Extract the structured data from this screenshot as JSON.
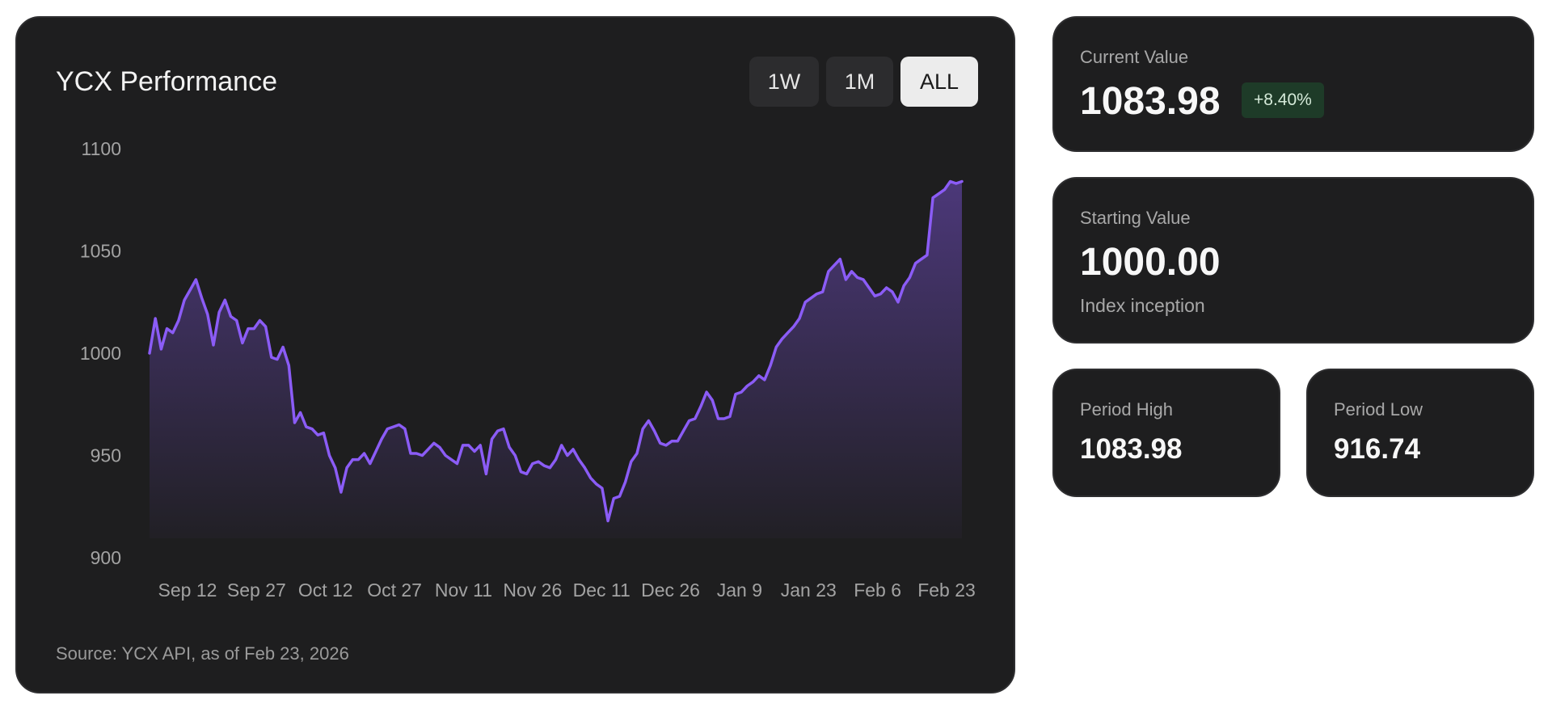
{
  "chart_card": {
    "title": "YCX Performance",
    "range_buttons": [
      "1W",
      "1M",
      "ALL"
    ],
    "active_range": "ALL",
    "source": "Source: YCX API, as of Feb 23, 2026"
  },
  "current": {
    "label": "Current Value",
    "value": "1083.98",
    "change": "+8.40%"
  },
  "starting": {
    "label": "Starting Value",
    "value": "1000.00",
    "note": "Index inception"
  },
  "high": {
    "label": "Period High",
    "value": "1083.98"
  },
  "low": {
    "label": "Period Low",
    "value": "916.74"
  },
  "colors": {
    "line": "#8b5cf6",
    "card_bg": "#1e1e1f",
    "badge_bg": "#1e3b28",
    "badge_text": "#d5ead9"
  },
  "chart_data": {
    "type": "area",
    "title": "YCX Performance",
    "xlabel": "",
    "ylabel": "",
    "ylim": [
      900,
      1100
    ],
    "yticks": [
      "1100",
      "1050",
      "1000",
      "950",
      "900"
    ],
    "xticks": [
      "Sep 12",
      "Sep 27",
      "Oct 12",
      "Oct 27",
      "Nov 11",
      "Nov 26",
      "Dec 11",
      "Dec 26",
      "Jan 9",
      "Jan 23",
      "Feb 6",
      "Feb 23"
    ],
    "x_start": "Sep 1",
    "x_end": "Feb 23",
    "grid": false,
    "legend": "none",
    "values": [
      1000.0,
      1017.0,
      1002.0,
      1012.0,
      1010.0,
      1016.0,
      1026.0,
      1031.0,
      1036.0,
      1027.0,
      1019.0,
      1004.0,
      1020.0,
      1026.0,
      1018.0,
      1016.0,
      1005.0,
      1012.0,
      1012.0,
      1016.0,
      1013.0,
      998.0,
      997.0,
      1003.0,
      994.0,
      966.0,
      971.0,
      964.0,
      963.0,
      960.0,
      961.0,
      950.0,
      944.0,
      932.0,
      944.0,
      948.0,
      948.0,
      951.0,
      946.0,
      952.0,
      958.0,
      963.0,
      964.0,
      965.0,
      963.0,
      951.0,
      951.0,
      950.0,
      953.0,
      956.0,
      954.0,
      950.0,
      948.0,
      946.0,
      955.0,
      955.0,
      952.0,
      955.0,
      941.0,
      958.0,
      962.0,
      963.0,
      954.0,
      950.0,
      942.0,
      941.0,
      946.0,
      947.0,
      945.0,
      944.0,
      948.0,
      955.0,
      950.0,
      953.0,
      948.0,
      944.0,
      939.0,
      936.0,
      934.0,
      918.0,
      929.0,
      930.0,
      937.0,
      947.0,
      951.0,
      963.0,
      967.0,
      962.0,
      956.0,
      955.0,
      957.0,
      957.0,
      962.0,
      967.0,
      968.0,
      974.0,
      981.0,
      977.0,
      968.0,
      968.0,
      969.0,
      980.0,
      981.0,
      984.0,
      986.0,
      989.0,
      987.0,
      994.0,
      1003.0,
      1007.0,
      1010.0,
      1013.0,
      1017.0,
      1025.0,
      1027.0,
      1029.0,
      1030.0,
      1040.0,
      1043.0,
      1046.0,
      1036.0,
      1040.0,
      1037.0,
      1036.0,
      1032.0,
      1028.0,
      1029.0,
      1032.0,
      1030.0,
      1025.0,
      1033.0,
      1037.0,
      1044.0,
      1046.0,
      1048.0,
      1076.0,
      1078.0,
      1080.0,
      1084.0,
      1083.0,
      1083.98
    ]
  }
}
